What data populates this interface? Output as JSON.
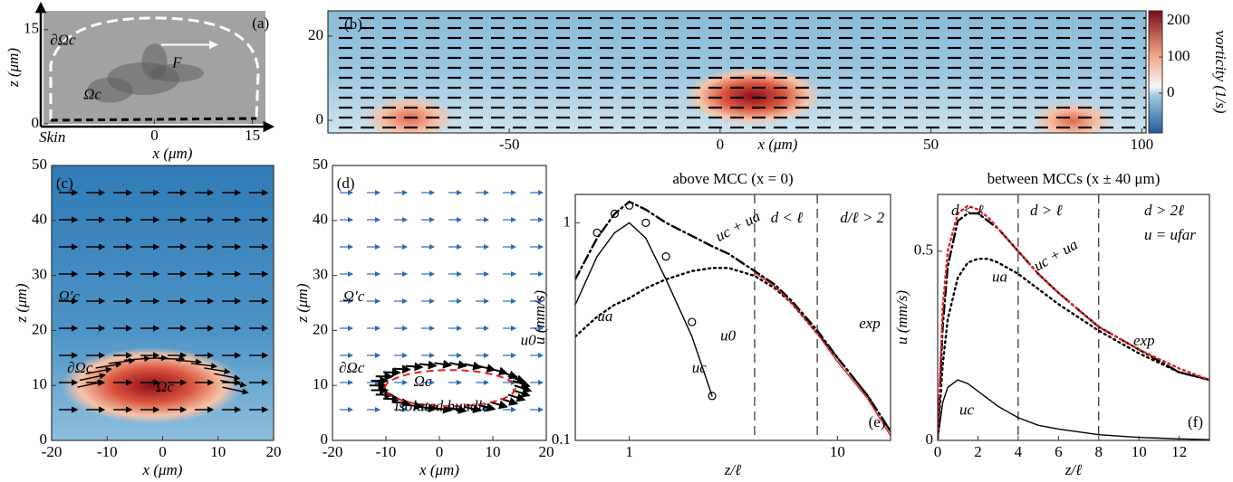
{
  "chart_data": [
    {
      "type": "image",
      "panel_label": "(a)",
      "xlabel": "x (μm)",
      "ylabel": "z (μm)",
      "xlim": [
        -17,
        17
      ],
      "ylim": [
        0,
        18
      ],
      "xticks": [
        0,
        15
      ],
      "yticks": [
        0,
        15
      ],
      "annotations": [
        "∂Ωc",
        "F",
        "Ωc",
        "Skin"
      ]
    },
    {
      "type": "contour",
      "panel_label": "(b)",
      "xlabel": "x (μm)",
      "xlim": [
        -93,
        101
      ],
      "ylim": [
        -3,
        26
      ],
      "xticks": [
        -50,
        0,
        50,
        100
      ],
      "yticks": [
        0,
        20
      ],
      "colorbar": {
        "label": "vorticity (1/s)",
        "lim": [
          -110,
          228
        ],
        "ticks": [
          0,
          100,
          200
        ]
      }
    },
    {
      "type": "contour",
      "panel_label": "(c)",
      "xlabel": "x (μm)",
      "ylabel": "z (μm)",
      "xlim": [
        -20,
        20
      ],
      "ylim": [
        0,
        50
      ],
      "xticks": [
        -20,
        -10,
        0,
        10,
        20
      ],
      "yticks": [
        0,
        10,
        20,
        30,
        40,
        50
      ],
      "annotations": [
        "Ω′c",
        "∂Ωc",
        "Ωc"
      ]
    },
    {
      "type": "quiver",
      "panel_label": "(d)",
      "xlabel": "x (μm)",
      "ylabel": "z (μm)",
      "xlim": [
        -20,
        20
      ],
      "ylim": [
        0,
        50
      ],
      "xticks": [
        -20,
        -10,
        0,
        10,
        20
      ],
      "yticks": [
        0,
        10,
        20,
        30,
        40,
        50
      ],
      "annotations": [
        "Ω′c",
        "∂Ωc",
        "Ωc",
        "isolated bundle",
        "u0"
      ]
    },
    {
      "type": "line",
      "panel_label": "(e)",
      "title": "above MCC (x = 0)",
      "xlabel": "z/ℓ",
      "ylabel": "u (mm/s)",
      "xlog": true,
      "ylog": true,
      "xlim": [
        0.55,
        18
      ],
      "ylim": [
        0.1,
        1.35
      ],
      "xticks": [
        1,
        10
      ],
      "yticks": [
        0.1,
        1
      ],
      "vlines": [
        4,
        8
      ],
      "annotations": [
        "d < ℓ",
        "d/ℓ > 2"
      ],
      "x": [
        0.55,
        0.7,
        0.85,
        1,
        1.2,
        1.5,
        2,
        2.5,
        3,
        4,
        5,
        6,
        8,
        10,
        14,
        18
      ],
      "series": [
        {
          "name": "uc",
          "style": "solid",
          "color": "#000000",
          "values": [
            0.42,
            0.7,
            0.9,
            1.0,
            0.85,
            0.55,
            0.3,
            0.16,
            null,
            null,
            null,
            null,
            null,
            null,
            null,
            null
          ]
        },
        {
          "name": "u0",
          "style": "circles",
          "color": "#000000",
          "values": [
            null,
            0.9,
            1.1,
            1.2,
            1.0,
            0.7,
            0.35,
            0.16,
            null,
            null,
            null,
            null,
            null,
            null,
            null,
            null
          ]
        },
        {
          "name": "ua",
          "style": "dotted",
          "color": "#000000",
          "values": [
            0.3,
            0.37,
            0.42,
            0.45,
            0.5,
            0.55,
            0.6,
            0.62,
            0.62,
            0.57,
            0.5,
            0.43,
            0.31,
            0.24,
            0.16,
            0.11
          ]
        },
        {
          "name": "uc + ua",
          "style": "dashdot",
          "color": "#000000",
          "values": [
            0.55,
            0.85,
            1.1,
            1.25,
            1.15,
            1.0,
            0.87,
            0.78,
            0.72,
            0.6,
            0.52,
            0.44,
            0.32,
            0.24,
            0.16,
            0.11
          ]
        },
        {
          "name": "exp",
          "style": "solid",
          "color": "#e02020",
          "values": [
            null,
            null,
            null,
            null,
            null,
            null,
            null,
            null,
            null,
            0.59,
            0.51,
            0.43,
            0.31,
            0.23,
            0.155,
            0.105
          ]
        }
      ]
    },
    {
      "type": "line",
      "panel_label": "(f)",
      "title": "between MCCs (x ± 40 μm)",
      "xlabel": "z/ℓ",
      "ylabel": "u (mm/s)",
      "xlim": [
        0,
        13.5
      ],
      "ylim": [
        0,
        0.65
      ],
      "xticks": [
        0,
        2,
        4,
        6,
        8,
        10,
        12
      ],
      "yticks": [
        0,
        0.5
      ],
      "vlines": [
        4,
        8
      ],
      "annotations": [
        "d < ℓ",
        "d > ℓ",
        "d > 2ℓ",
        "u = ufar"
      ],
      "x": [
        0,
        0.25,
        0.5,
        1,
        1.5,
        2,
        2.5,
        3,
        4,
        5,
        6,
        8,
        10,
        12,
        13.5
      ],
      "series": [
        {
          "name": "uc",
          "style": "solid",
          "color": "#000000",
          "values": [
            0,
            0.1,
            0.14,
            0.16,
            0.15,
            0.13,
            0.11,
            0.09,
            0.06,
            0.04,
            0.03,
            0.015,
            0.008,
            0.004,
            0.002
          ]
        },
        {
          "name": "ua",
          "style": "dotted",
          "color": "#000000",
          "values": [
            0,
            0.2,
            0.32,
            0.43,
            0.47,
            0.48,
            0.48,
            0.47,
            0.44,
            0.4,
            0.36,
            0.29,
            0.23,
            0.18,
            0.16
          ]
        },
        {
          "name": "uc + ua",
          "style": "dashdot",
          "color": "#000000",
          "values": [
            0,
            0.3,
            0.46,
            0.58,
            0.6,
            0.6,
            0.58,
            0.56,
            0.5,
            0.44,
            0.39,
            0.3,
            0.24,
            0.18,
            0.16
          ]
        },
        {
          "name": "exp",
          "style": "dotted",
          "color": "#e02020",
          "values": [
            0,
            0.35,
            0.5,
            0.6,
            0.62,
            0.61,
            0.59,
            0.56,
            0.5,
            0.44,
            0.39,
            0.3,
            0.24,
            0.19,
            0.16
          ]
        }
      ]
    }
  ]
}
